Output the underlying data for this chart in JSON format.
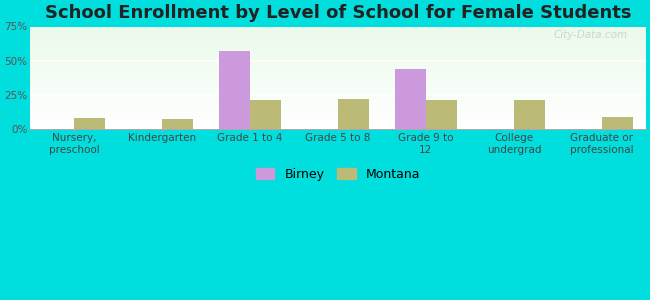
{
  "title": "School Enrollment by Level of School for Female Students",
  "categories": [
    "Nursery,\npreschool",
    "Kindergarten",
    "Grade 1 to 4",
    "Grade 5 to 8",
    "Grade 9 to\n12",
    "College\nundergrad",
    "Graduate or\nprofessional"
  ],
  "birney": [
    0,
    0,
    57,
    0,
    44,
    0,
    0
  ],
  "montana": [
    8,
    7,
    21,
    22,
    21,
    21,
    9
  ],
  "birney_color": "#cc99dd",
  "montana_color": "#bbbb77",
  "bg_color": "#00dede",
  "ylim": [
    0,
    75
  ],
  "yticks": [
    0,
    25,
    50,
    75
  ],
  "ytick_labels": [
    "0%",
    "25%",
    "50%",
    "75%"
  ],
  "title_fontsize": 13,
  "tick_fontsize": 7.5,
  "legend_fontsize": 9,
  "bar_width": 0.35
}
